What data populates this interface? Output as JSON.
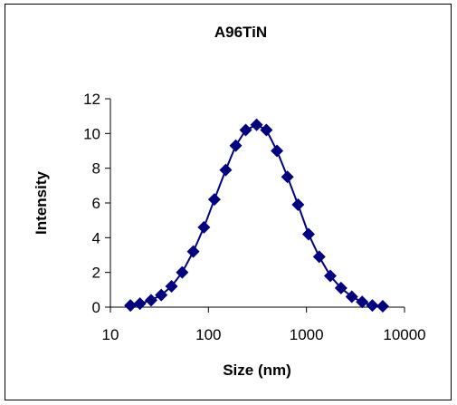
{
  "chart_data": {
    "type": "scatter",
    "title": "A96TiN",
    "xlabel": "Size (nm)",
    "ylabel": "Intensity",
    "x_scale": "log",
    "xlim": [
      10,
      10000
    ],
    "ylim": [
      0,
      12
    ],
    "x_ticks": [
      10,
      100,
      1000,
      10000
    ],
    "x_tick_labels": [
      "10",
      "100",
      "1000",
      "10000"
    ],
    "y_ticks": [
      0,
      2,
      4,
      6,
      8,
      10,
      12
    ],
    "y_tick_labels": [
      "0",
      "2",
      "4",
      "6",
      "8",
      "10",
      "12"
    ],
    "grid": false,
    "legend": "none",
    "colors": {
      "series": "#000080",
      "axis": "#000000"
    },
    "series": [
      {
        "marker": "diamond",
        "line": true,
        "x": [
          16,
          20,
          26,
          33,
          42,
          54,
          70,
          90,
          115,
          150,
          190,
          240,
          310,
          390,
          500,
          640,
          820,
          1050,
          1350,
          1750,
          2250,
          2900,
          3700,
          4700,
          6000
        ],
        "y": [
          0.1,
          0.2,
          0.4,
          0.7,
          1.2,
          2.0,
          3.2,
          4.6,
          6.2,
          7.9,
          9.3,
          10.2,
          10.5,
          10.2,
          9.0,
          7.5,
          5.9,
          4.2,
          2.9,
          1.8,
          1.1,
          0.6,
          0.3,
          0.1,
          0.05
        ]
      }
    ]
  }
}
